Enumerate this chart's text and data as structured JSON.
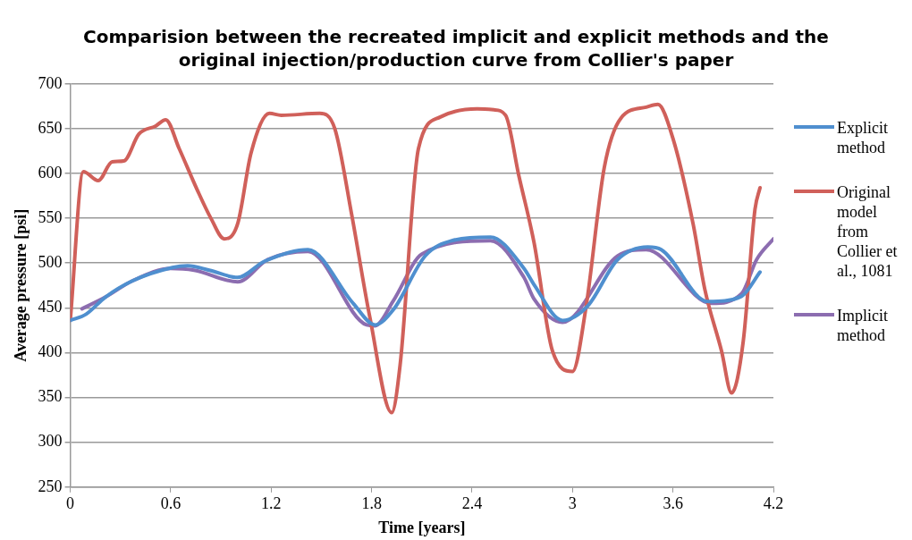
{
  "chart_data": {
    "type": "line",
    "title": "Comparision between the recreated implicit and explicit methods and the original injection/production curve from Collier's paper",
    "xlabel": "Time [years]",
    "ylabel": "Average pressure [psi]",
    "xlim": [
      0,
      4.2
    ],
    "xticks": [
      0,
      0.6,
      1.2,
      1.8,
      2.4,
      3,
      3.6,
      4.2
    ],
    "ylim": [
      250,
      700
    ],
    "yticks": [
      250,
      300,
      350,
      400,
      450,
      500,
      550,
      600,
      650,
      700
    ],
    "grid": "y",
    "legend": "right",
    "marker": "none",
    "line_style": "solid",
    "series": [
      {
        "name": "Explicit method",
        "color": "#4f8fcf",
        "x": [
          0,
          0.095,
          0.21,
          0.37,
          0.61,
          0.7,
          0.83,
          1.0,
          1.16,
          1.42,
          1.69,
          1.82,
          1.93,
          2.12,
          2.28,
          2.51,
          2.71,
          2.77,
          2.94,
          3.09,
          3.27,
          3.45,
          3.53,
          3.81,
          4.01,
          4.12
        ],
        "values": [
          436,
          443,
          462,
          480,
          495,
          497,
          492,
          484,
          502,
          515,
          455,
          431,
          448,
          508,
          525,
          529,
          494,
          476,
          436,
          452,
          504,
          518,
          515,
          457,
          463,
          490
        ]
      },
      {
        "name": "Original model from Collier et al., 1081",
        "color": "#d0605a",
        "x": [
          0,
          0.078,
          0.167,
          0.25,
          0.32,
          0.41,
          0.51,
          0.57,
          0.65,
          0.76,
          0.84,
          0.92,
          1.0,
          1.08,
          1.19,
          1.26,
          1.49,
          1.58,
          1.68,
          1.79,
          1.92,
          1.97,
          2.08,
          2.21,
          2.43,
          2.53,
          2.6,
          2.68,
          2.77,
          2.88,
          3.0,
          3.08,
          3.19,
          3.29,
          3.44,
          3.51,
          3.6,
          3.72,
          3.79,
          3.89,
          3.95,
          4.02,
          4.09,
          4.12
        ],
        "values": [
          436,
          602,
          592,
          613,
          614,
          644,
          653,
          660,
          628,
          581,
          550,
          527,
          544,
          623,
          667,
          665,
          667,
          650,
          555,
          439,
          333,
          386,
          628,
          663,
          672,
          671,
          665,
          597,
          523,
          402,
          379,
          450,
          607,
          662,
          674,
          677,
          639,
          544,
          471,
          402,
          355,
          413,
          560,
          584
        ]
      },
      {
        "name": "Implicit method",
        "color": "#8c6db0",
        "x": [
          0.07,
          0.21,
          0.37,
          0.6,
          0.74,
          1.0,
          1.18,
          1.42,
          1.77,
          1.82,
          1.93,
          2.1,
          2.51,
          2.71,
          2.77,
          2.94,
          3.27,
          3.44,
          3.83,
          4.01,
          4.1,
          4.2
        ],
        "values": [
          449,
          462,
          480,
          494,
          492,
          479,
          504,
          513,
          431,
          430,
          458,
          510,
          525,
          484,
          460,
          434,
          508,
          515,
          455,
          466,
          504,
          527
        ]
      }
    ]
  }
}
